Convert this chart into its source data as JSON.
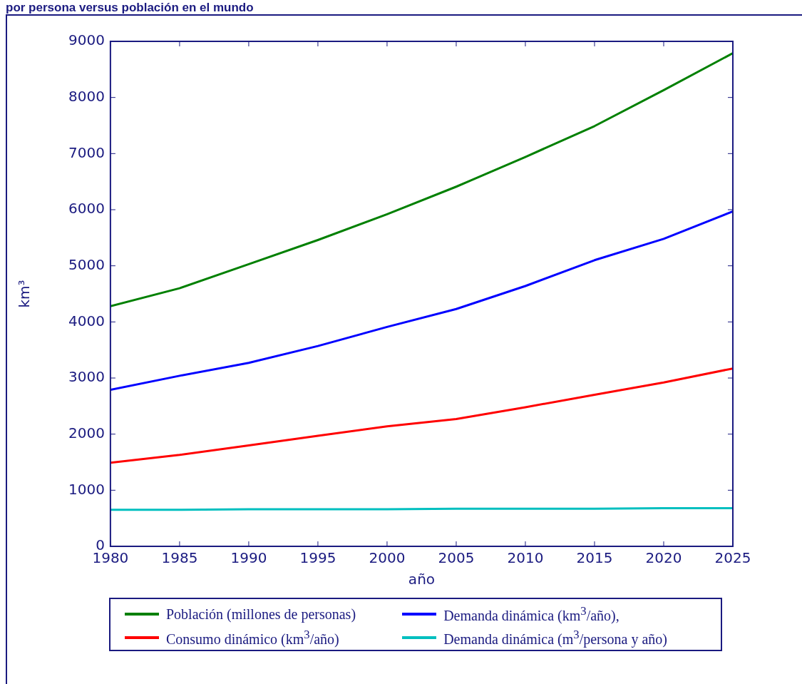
{
  "chart_data": {
    "type": "line",
    "title": "por persona versus población en el mundo",
    "xlabel": "año",
    "ylabel": "km³",
    "x": [
      1980,
      1985,
      1990,
      1995,
      2000,
      2005,
      2010,
      2015,
      2020,
      2025
    ],
    "series": [
      {
        "name": "Población (millones de personas)",
        "color": "#008000",
        "values": [
          4280,
          4600,
          5030,
          5460,
          5920,
          6410,
          6940,
          7490,
          8130,
          8790
        ]
      },
      {
        "name": "Consumo dinámico (km$^{3}$/año)",
        "color": "#ff0000",
        "values": [
          1490,
          1630,
          1800,
          1970,
          2140,
          2270,
          2480,
          2700,
          2920,
          3170
        ]
      },
      {
        "name": "Demanda dinámica (km$^{3}$/año),",
        "color": "#0000ff",
        "values": [
          2790,
          3040,
          3270,
          3570,
          3910,
          4230,
          4640,
          5100,
          5480,
          5970
        ]
      },
      {
        "name": "Demanda dinámica (m$^{3}$/persona y año)",
        "color": "#00bfbf",
        "values": [
          650,
          650,
          660,
          660,
          660,
          670,
          670,
          670,
          680,
          680
        ]
      }
    ],
    "xlim": [
      1980,
      2025
    ],
    "xticks": [
      1980,
      1985,
      1990,
      1995,
      2000,
      2005,
      2010,
      2015,
      2020,
      2025
    ],
    "ylim": [
      0,
      9000
    ],
    "yticks": [
      0,
      1000,
      2000,
      3000,
      4000,
      5000,
      6000,
      7000,
      8000,
      9000
    ],
    "grid": false,
    "legend": "bottom",
    "marker": "none",
    "line_style": "solid"
  }
}
